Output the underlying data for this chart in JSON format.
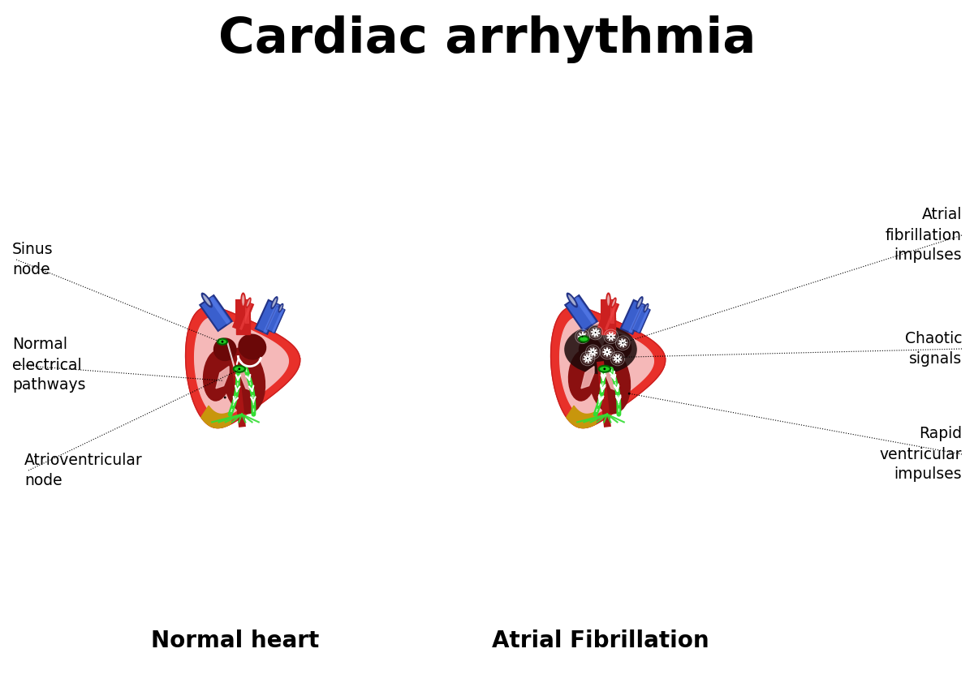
{
  "title": "Cardiac arrhythmia",
  "title_fontsize": 44,
  "title_fontweight": "bold",
  "bg_color": "#ffffff",
  "left_label": "Normal heart",
  "right_label": "Atrial Fibrillation",
  "label_fontsize": 20,
  "label_fontweight": "bold",
  "annotation_fontsize": 13.5,
  "heart": {
    "outer_color": "#e8302a",
    "outer_edge": "#cc2020",
    "pink_interior": "#f5b8b8",
    "pink_interior2": "#f0a0a0",
    "dark_red": "#8b1010",
    "dark_red2": "#6b0808",
    "gold": "#c8960c",
    "blue_vessel": "#3a5fcd",
    "blue_vessel_edge": "#223388",
    "blue_vessel_light": "#6688ee",
    "red_vessel": "#cc2020",
    "green_node": "#22cc22",
    "green_node_edge": "#006600",
    "green_path": "#33dd33",
    "white": "#ffffff",
    "black": "#111111",
    "septum": "#aa1515",
    "valve_pink": "#f0b0b0"
  }
}
